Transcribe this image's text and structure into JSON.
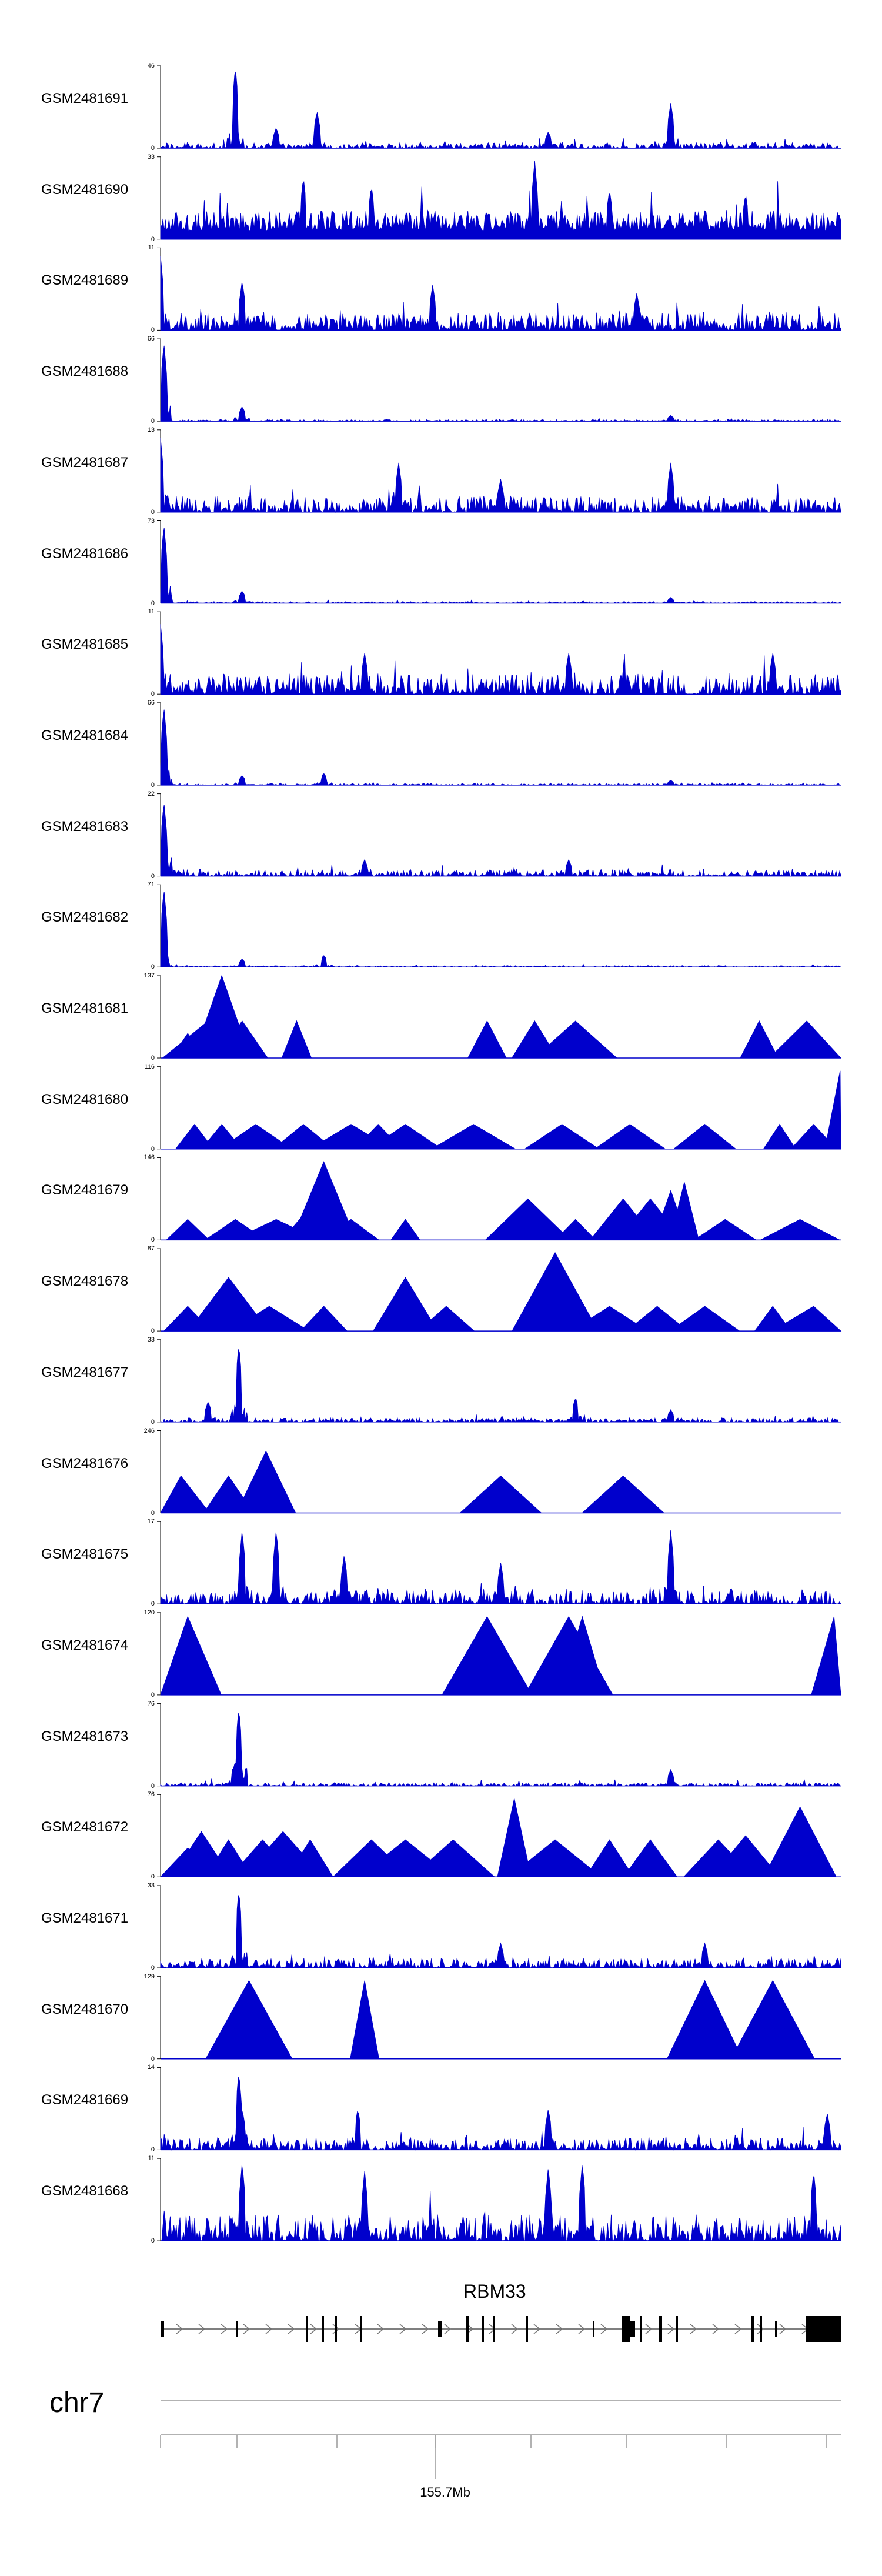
{
  "tracks": [
    {
      "id": "GSM2481691",
      "ymax": 46,
      "ymin": 0,
      "shape": "noisy",
      "base": 0.07,
      "peaks": [
        [
          0.11,
          1.0
        ],
        [
          0.23,
          0.45
        ],
        [
          0.75,
          0.55
        ],
        [
          0.17,
          0.25
        ],
        [
          0.57,
          0.2
        ]
      ]
    },
    {
      "id": "GSM2481690",
      "ymax": 33,
      "ymin": 0,
      "shape": "dense",
      "base": 0.35,
      "peaks": [
        [
          0.21,
          0.75
        ],
        [
          0.31,
          0.65
        ],
        [
          0.55,
          0.95
        ],
        [
          0.66,
          0.6
        ],
        [
          0.86,
          0.55
        ]
      ]
    },
    {
      "id": "GSM2481689",
      "ymax": 11,
      "ymin": 0,
      "shape": "noisy",
      "base": 0.22,
      "peaks": [
        [
          0.0,
          0.9
        ],
        [
          0.12,
          0.6
        ],
        [
          0.4,
          0.55
        ],
        [
          0.7,
          0.45
        ]
      ]
    },
    {
      "id": "GSM2481688",
      "ymax": 66,
      "ymin": 0,
      "shape": "spiky",
      "base": 0.02,
      "peaks": [
        [
          0.005,
          0.95
        ],
        [
          0.12,
          0.18
        ],
        [
          0.75,
          0.07
        ]
      ]
    },
    {
      "id": "GSM2481687",
      "ymax": 13,
      "ymin": 0,
      "shape": "noisy",
      "base": 0.2,
      "peaks": [
        [
          0.0,
          0.9
        ],
        [
          0.35,
          0.6
        ],
        [
          0.75,
          0.6
        ],
        [
          0.5,
          0.4
        ]
      ]
    },
    {
      "id": "GSM2481686",
      "ymax": 73,
      "ymin": 0,
      "shape": "spiky",
      "base": 0.02,
      "peaks": [
        [
          0.005,
          0.95
        ],
        [
          0.12,
          0.15
        ],
        [
          0.75,
          0.07
        ]
      ]
    },
    {
      "id": "GSM2481685",
      "ymax": 11,
      "ymin": 0,
      "shape": "noisy",
      "base": 0.25,
      "peaks": [
        [
          0.0,
          0.85
        ],
        [
          0.3,
          0.5
        ],
        [
          0.6,
          0.5
        ],
        [
          0.9,
          0.5
        ]
      ]
    },
    {
      "id": "GSM2481684",
      "ymax": 66,
      "ymin": 0,
      "shape": "spiky",
      "base": 0.02,
      "peaks": [
        [
          0.005,
          0.95
        ],
        [
          0.12,
          0.12
        ],
        [
          0.24,
          0.15
        ],
        [
          0.75,
          0.06
        ]
      ]
    },
    {
      "id": "GSM2481683",
      "ymax": 22,
      "ymin": 0,
      "shape": "noisy",
      "base": 0.08,
      "peaks": [
        [
          0.005,
          0.9
        ],
        [
          0.3,
          0.2
        ],
        [
          0.6,
          0.2
        ]
      ]
    },
    {
      "id": "GSM2481682",
      "ymax": 71,
      "ymin": 0,
      "shape": "spiky",
      "base": 0.02,
      "peaks": [
        [
          0.005,
          0.95
        ],
        [
          0.12,
          0.1
        ],
        [
          0.24,
          0.15
        ]
      ]
    },
    {
      "id": "GSM2481681",
      "ymax": 137,
      "ymin": 0,
      "shape": "sparse",
      "base": 0.0,
      "peaks": [
        [
          0.04,
          0.3
        ],
        [
          0.07,
          0.45
        ],
        [
          0.09,
          1.0
        ],
        [
          0.12,
          0.45
        ],
        [
          0.2,
          0.45
        ],
        [
          0.48,
          0.45
        ],
        [
          0.55,
          0.45
        ],
        [
          0.61,
          0.45
        ],
        [
          0.88,
          0.45
        ],
        [
          0.95,
          0.45
        ]
      ]
    },
    {
      "id": "GSM2481680",
      "ymax": 116,
      "ymin": 0,
      "shape": "sparse",
      "base": 0.0,
      "peaks": [
        [
          0.05,
          0.3
        ],
        [
          0.09,
          0.3
        ],
        [
          0.14,
          0.3
        ],
        [
          0.21,
          0.3
        ],
        [
          0.28,
          0.3
        ],
        [
          0.32,
          0.3
        ],
        [
          0.36,
          0.3
        ],
        [
          0.46,
          0.3
        ],
        [
          0.59,
          0.3
        ],
        [
          0.69,
          0.3
        ],
        [
          0.8,
          0.3
        ],
        [
          0.91,
          0.3
        ],
        [
          0.96,
          0.3
        ],
        [
          0.999,
          0.95
        ]
      ]
    },
    {
      "id": "GSM2481679",
      "ymax": 146,
      "ymin": 0,
      "shape": "sparse",
      "base": 0.0,
      "peaks": [
        [
          0.04,
          0.25
        ],
        [
          0.11,
          0.25
        ],
        [
          0.17,
          0.25
        ],
        [
          0.23,
          0.5
        ],
        [
          0.24,
          0.95
        ],
        [
          0.28,
          0.25
        ],
        [
          0.36,
          0.25
        ],
        [
          0.54,
          0.5
        ],
        [
          0.61,
          0.25
        ],
        [
          0.68,
          0.5
        ],
        [
          0.72,
          0.5
        ],
        [
          0.75,
          0.6
        ],
        [
          0.77,
          0.7
        ],
        [
          0.83,
          0.25
        ],
        [
          0.94,
          0.25
        ]
      ]
    },
    {
      "id": "GSM2481678",
      "ymax": 87,
      "ymin": 0,
      "shape": "sparse",
      "base": 0.0,
      "peaks": [
        [
          0.04,
          0.3
        ],
        [
          0.1,
          0.65
        ],
        [
          0.13,
          0.3
        ],
        [
          0.16,
          0.3
        ],
        [
          0.24,
          0.3
        ],
        [
          0.36,
          0.65
        ],
        [
          0.42,
          0.3
        ],
        [
          0.58,
          0.95
        ],
        [
          0.66,
          0.3
        ],
        [
          0.73,
          0.3
        ],
        [
          0.8,
          0.3
        ],
        [
          0.9,
          0.3
        ],
        [
          0.96,
          0.3
        ]
      ]
    },
    {
      "id": "GSM2481677",
      "ymax": 33,
      "ymin": 0,
      "shape": "noisy",
      "base": 0.05,
      "peaks": [
        [
          0.07,
          0.25
        ],
        [
          0.115,
          0.95
        ],
        [
          0.61,
          0.3
        ],
        [
          0.75,
          0.15
        ]
      ]
    },
    {
      "id": "GSM2481676",
      "ymax": 246,
      "ymin": 0,
      "shape": "sparse",
      "base": 0.0,
      "peaks": [
        [
          0.03,
          0.45
        ],
        [
          0.1,
          0.45
        ],
        [
          0.155,
          0.75
        ],
        [
          0.16,
          0.55
        ],
        [
          0.5,
          0.45
        ],
        [
          0.68,
          0.45
        ]
      ]
    },
    {
      "id": "GSM2481675",
      "ymax": 17,
      "ymin": 0,
      "shape": "noisy",
      "base": 0.18,
      "peaks": [
        [
          0.12,
          0.9
        ],
        [
          0.17,
          0.9
        ],
        [
          0.27,
          0.6
        ],
        [
          0.5,
          0.5
        ],
        [
          0.75,
          0.9
        ]
      ]
    },
    {
      "id": "GSM2481674",
      "ymax": 120,
      "ymin": 0,
      "shape": "sparse",
      "base": 0.0,
      "peaks": [
        [
          0.04,
          0.95
        ],
        [
          0.48,
          0.95
        ],
        [
          0.6,
          0.95
        ],
        [
          0.62,
          0.95
        ],
        [
          0.99,
          0.95
        ]
      ]
    },
    {
      "id": "GSM2481673",
      "ymax": 76,
      "ymin": 0,
      "shape": "noisy",
      "base": 0.04,
      "peaks": [
        [
          0.115,
          0.95
        ],
        [
          0.11,
          0.3
        ],
        [
          0.75,
          0.2
        ]
      ]
    },
    {
      "id": "GSM2481672",
      "ymax": 76,
      "ymin": 0,
      "shape": "sparse",
      "base": 0.0,
      "peaks": [
        [
          0.04,
          0.35
        ],
        [
          0.06,
          0.55
        ],
        [
          0.1,
          0.45
        ],
        [
          0.15,
          0.45
        ],
        [
          0.18,
          0.55
        ],
        [
          0.22,
          0.45
        ],
        [
          0.31,
          0.45
        ],
        [
          0.36,
          0.45
        ],
        [
          0.43,
          0.45
        ],
        [
          0.52,
          0.95
        ],
        [
          0.58,
          0.45
        ],
        [
          0.66,
          0.45
        ],
        [
          0.72,
          0.45
        ],
        [
          0.82,
          0.45
        ],
        [
          0.86,
          0.5
        ],
        [
          0.94,
          0.85
        ]
      ]
    },
    {
      "id": "GSM2481671",
      "ymax": 33,
      "ymin": 0,
      "shape": "noisy",
      "base": 0.12,
      "peaks": [
        [
          0.115,
          0.95
        ],
        [
          0.5,
          0.3
        ],
        [
          0.8,
          0.3
        ]
      ]
    },
    {
      "id": "GSM2481670",
      "ymax": 129,
      "ymin": 0,
      "shape": "sparse",
      "base": 0.0,
      "peaks": [
        [
          0.13,
          0.95
        ],
        [
          0.3,
          0.95
        ],
        [
          0.8,
          0.95
        ],
        [
          0.9,
          0.95
        ]
      ]
    },
    {
      "id": "GSM2481669",
      "ymax": 14,
      "ymin": 0,
      "shape": "noisy",
      "base": 0.15,
      "peaks": [
        [
          0.115,
          0.95
        ],
        [
          0.12,
          0.5
        ],
        [
          0.29,
          0.5
        ],
        [
          0.57,
          0.5
        ],
        [
          0.98,
          0.45
        ]
      ]
    },
    {
      "id": "GSM2481668",
      "ymax": 11,
      "ymin": 0,
      "shape": "noisy",
      "base": 0.32,
      "peaks": [
        [
          0.12,
          0.95
        ],
        [
          0.3,
          0.85
        ],
        [
          0.57,
          0.9
        ],
        [
          0.62,
          0.95
        ],
        [
          0.96,
          0.85
        ]
      ]
    }
  ],
  "gene": {
    "name": "RBM33"
  },
  "chromosome": {
    "name": "chr7",
    "tick_label": "155.7Mb"
  },
  "colors": {
    "track": "#0000cc",
    "axis": "#000000",
    "gene": "#000000",
    "ruler": "#888888"
  },
  "chart_data": {
    "type": "area",
    "title": "",
    "xlabel": "chr7",
    "ylabel": "",
    "note": "Genome browser coverage tracks across the RBM33 locus; y-axis max per track shown at top-left of each track.",
    "series": [
      {
        "name": "GSM2481691",
        "ymax": 46
      },
      {
        "name": "GSM2481690",
        "ymax": 33
      },
      {
        "name": "GSM2481689",
        "ymax": 11
      },
      {
        "name": "GSM2481688",
        "ymax": 66
      },
      {
        "name": "GSM2481687",
        "ymax": 13
      },
      {
        "name": "GSM2481686",
        "ymax": 73
      },
      {
        "name": "GSM2481685",
        "ymax": 11
      },
      {
        "name": "GSM2481684",
        "ymax": 66
      },
      {
        "name": "GSM2481683",
        "ymax": 22
      },
      {
        "name": "GSM2481682",
        "ymax": 71
      },
      {
        "name": "GSM2481681",
        "ymax": 137
      },
      {
        "name": "GSM2481680",
        "ymax": 116
      },
      {
        "name": "GSM2481679",
        "ymax": 146
      },
      {
        "name": "GSM2481678",
        "ymax": 87
      },
      {
        "name": "GSM2481677",
        "ymax": 33
      },
      {
        "name": "GSM2481676",
        "ymax": 246
      },
      {
        "name": "GSM2481675",
        "ymax": 17
      },
      {
        "name": "GSM2481674",
        "ymax": 120
      },
      {
        "name": "GSM2481673",
        "ymax": 76
      },
      {
        "name": "GSM2481672",
        "ymax": 76
      },
      {
        "name": "GSM2481671",
        "ymax": 33
      },
      {
        "name": "GSM2481670",
        "ymax": 129
      },
      {
        "name": "GSM2481669",
        "ymax": 14
      },
      {
        "name": "GSM2481668",
        "ymax": 11
      }
    ],
    "x_ticks": [
      "155.7Mb"
    ]
  }
}
